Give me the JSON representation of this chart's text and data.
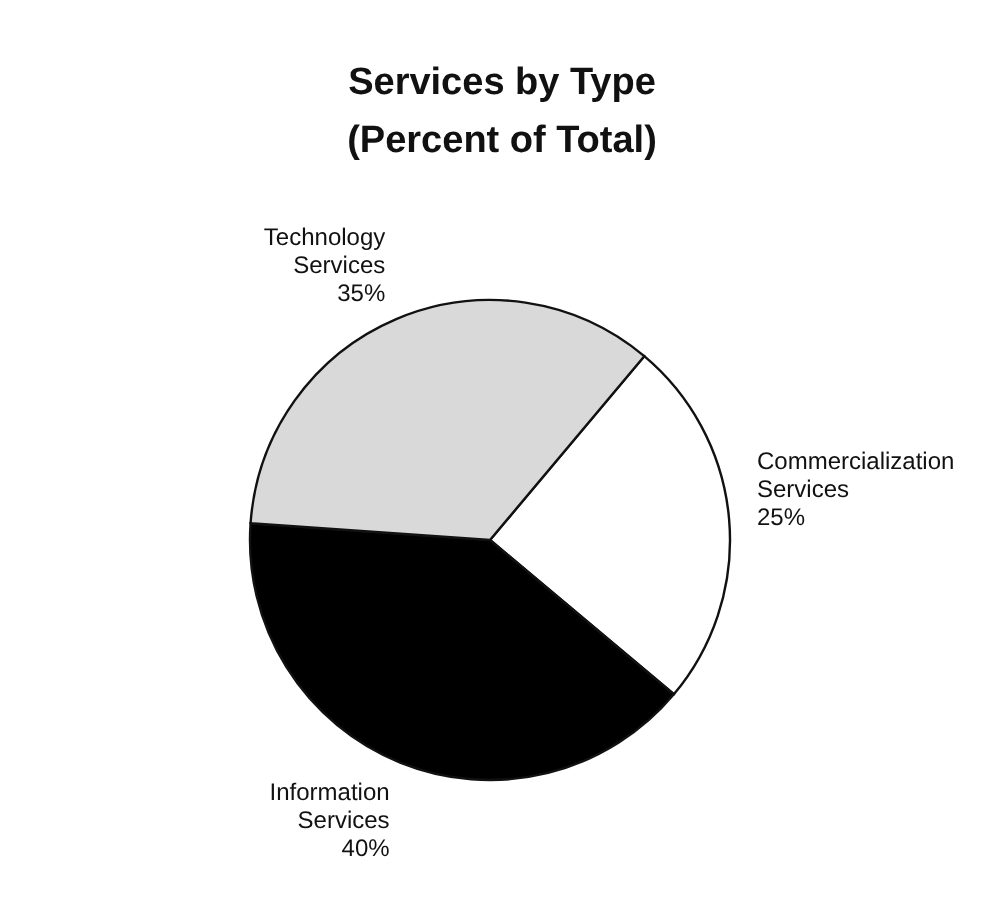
{
  "chart_data": {
    "type": "pie",
    "title": "Services by Type",
    "subtitle": "(Percent of Total)",
    "categories": [
      "Commercialization Services",
      "Information Services",
      "Technology Services"
    ],
    "values": [
      25,
      40,
      35
    ],
    "colors": [
      "#ffffff",
      "#000000",
      "#d9d9d9"
    ],
    "value_labels": [
      "25%",
      "40%",
      "35%"
    ],
    "legend": false
  }
}
